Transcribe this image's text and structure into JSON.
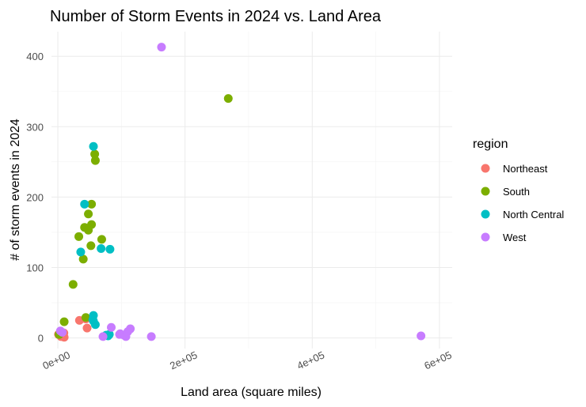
{
  "chart_data": {
    "type": "scatter",
    "title": "Number of Storm Events in 2024 vs. Land Area",
    "xlabel": "Land area (square miles)",
    "ylabel": "# of storm events in 2024",
    "xlim": [
      -10000,
      620000
    ],
    "ylim": [
      -15,
      435
    ],
    "x_ticks": [
      {
        "value": 0,
        "label": "0e+00"
      },
      {
        "value": 200000,
        "label": "2e+05"
      },
      {
        "value": 400000,
        "label": "4e+05"
      },
      {
        "value": 600000,
        "label": "6e+05"
      }
    ],
    "y_ticks": [
      {
        "value": 0,
        "label": "0"
      },
      {
        "value": 100,
        "label": "100"
      },
      {
        "value": 200,
        "label": "200"
      },
      {
        "value": 300,
        "label": "300"
      },
      {
        "value": 400,
        "label": "400"
      }
    ],
    "grid": true,
    "legend": {
      "title": "region",
      "placement": "right"
    },
    "series": [
      {
        "name": "Northeast",
        "color": "#F8766D",
        "points": [
          {
            "x": 1000,
            "y": 5
          },
          {
            "x": 5000,
            "y": 2
          },
          {
            "x": 9000,
            "y": 3
          },
          {
            "x": 10000,
            "y": 1
          },
          {
            "x": 9500,
            "y": 7
          },
          {
            "x": 7800,
            "y": 4
          },
          {
            "x": 46000,
            "y": 14
          },
          {
            "x": 34000,
            "y": 25
          },
          {
            "x": 44000,
            "y": 27
          }
        ]
      },
      {
        "name": "South",
        "color": "#7CAE00",
        "points": [
          {
            "x": 268000,
            "y": 340
          },
          {
            "x": 58000,
            "y": 261
          },
          {
            "x": 59000,
            "y": 252
          },
          {
            "x": 53000,
            "y": 190
          },
          {
            "x": 48000,
            "y": 176
          },
          {
            "x": 53000,
            "y": 161
          },
          {
            "x": 42000,
            "y": 157
          },
          {
            "x": 48000,
            "y": 153
          },
          {
            "x": 33000,
            "y": 144
          },
          {
            "x": 69000,
            "y": 140
          },
          {
            "x": 52000,
            "y": 131
          },
          {
            "x": 40000,
            "y": 112
          },
          {
            "x": 24000,
            "y": 76
          },
          {
            "x": 44000,
            "y": 29
          },
          {
            "x": 10000,
            "y": 23
          },
          {
            "x": 2000,
            "y": 5
          }
        ]
      },
      {
        "name": "North Central",
        "color": "#00BFC4",
        "points": [
          {
            "x": 56000,
            "y": 272
          },
          {
            "x": 42000,
            "y": 190
          },
          {
            "x": 36000,
            "y": 122
          },
          {
            "x": 68000,
            "y": 127
          },
          {
            "x": 82000,
            "y": 126
          },
          {
            "x": 56000,
            "y": 32
          },
          {
            "x": 56000,
            "y": 24
          },
          {
            "x": 59000,
            "y": 19
          },
          {
            "x": 76000,
            "y": 4
          },
          {
            "x": 79000,
            "y": 3
          },
          {
            "x": 81000,
            "y": 5
          },
          {
            "x": 55000,
            "y": 26
          }
        ]
      },
      {
        "name": "West",
        "color": "#C77CFF",
        "points": [
          {
            "x": 163000,
            "y": 413
          },
          {
            "x": 571000,
            "y": 3
          },
          {
            "x": 147000,
            "y": 2
          },
          {
            "x": 114000,
            "y": 13
          },
          {
            "x": 110000,
            "y": 9
          },
          {
            "x": 98000,
            "y": 6
          },
          {
            "x": 104000,
            "y": 4
          },
          {
            "x": 84000,
            "y": 15
          },
          {
            "x": 71000,
            "y": 2
          },
          {
            "x": 97000,
            "y": 5
          },
          {
            "x": 107000,
            "y": 2
          },
          {
            "x": 4000,
            "y": 10
          },
          {
            "x": 7000,
            "y": 8
          }
        ]
      }
    ]
  }
}
